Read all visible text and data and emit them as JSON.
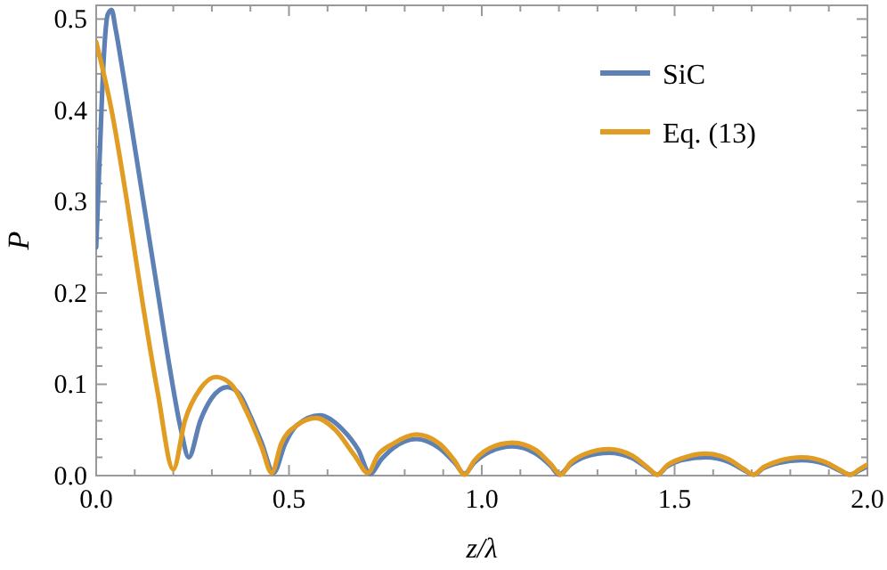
{
  "chart_data": {
    "type": "line",
    "xlabel": "z/λ",
    "ylabel": "P",
    "xlim": [
      0,
      2
    ],
    "ylim": [
      0,
      0.515
    ],
    "xticks": [
      {
        "value": 0,
        "label": "0.0"
      },
      {
        "value": 0.1,
        "label": null
      },
      {
        "value": 0.2,
        "label": null
      },
      {
        "value": 0.3,
        "label": null
      },
      {
        "value": 0.4,
        "label": null
      },
      {
        "value": 0.5,
        "label": "0.5"
      },
      {
        "value": 0.6,
        "label": null
      },
      {
        "value": 0.7,
        "label": null
      },
      {
        "value": 0.8,
        "label": null
      },
      {
        "value": 0.9,
        "label": null
      },
      {
        "value": 1,
        "label": "1.0"
      },
      {
        "value": 1.1,
        "label": null
      },
      {
        "value": 1.2,
        "label": null
      },
      {
        "value": 1.3,
        "label": null
      },
      {
        "value": 1.4,
        "label": null
      },
      {
        "value": 1.5,
        "label": "1.5"
      },
      {
        "value": 1.6,
        "label": null
      },
      {
        "value": 1.7,
        "label": null
      },
      {
        "value": 1.8,
        "label": null
      },
      {
        "value": 1.9,
        "label": null
      },
      {
        "value": 2,
        "label": "2.0"
      }
    ],
    "yticks": [
      {
        "value": 0,
        "label": "0.0"
      },
      {
        "value": 0.02,
        "label": null
      },
      {
        "value": 0.04,
        "label": null
      },
      {
        "value": 0.06,
        "label": null
      },
      {
        "value": 0.08,
        "label": null
      },
      {
        "value": 0.1,
        "label": "0.1"
      },
      {
        "value": 0.12,
        "label": null
      },
      {
        "value": 0.14,
        "label": null
      },
      {
        "value": 0.16,
        "label": null
      },
      {
        "value": 0.18,
        "label": null
      },
      {
        "value": 0.2,
        "label": "0.2"
      },
      {
        "value": 0.22,
        "label": null
      },
      {
        "value": 0.24,
        "label": null
      },
      {
        "value": 0.26,
        "label": null
      },
      {
        "value": 0.28,
        "label": null
      },
      {
        "value": 0.3,
        "label": "0.3"
      },
      {
        "value": 0.32,
        "label": null
      },
      {
        "value": 0.34,
        "label": null
      },
      {
        "value": 0.36,
        "label": null
      },
      {
        "value": 0.38,
        "label": null
      },
      {
        "value": 0.4,
        "label": "0.4"
      },
      {
        "value": 0.42,
        "label": null
      },
      {
        "value": 0.44,
        "label": null
      },
      {
        "value": 0.46,
        "label": null
      },
      {
        "value": 0.48,
        "label": null
      },
      {
        "value": 0.5,
        "label": "0.5"
      }
    ],
    "grid": false,
    "legend": "top right",
    "line_style": "solid",
    "marker": "none",
    "series": [
      {
        "name": "SiC",
        "color": "#5e81b5",
        "x": [
          0,
          0.01,
          0.02,
          0.03,
          0.04,
          0.05,
          0.07,
          0.1,
          0.13,
          0.16,
          0.19,
          0.22,
          0.24,
          0.27,
          0.3,
          0.34,
          0.37,
          0.4,
          0.43,
          0.46,
          0.49,
          0.52,
          0.58,
          0.64,
          0.68,
          0.71,
          0.74,
          0.77,
          0.83,
          0.89,
          0.93,
          0.955,
          0.98,
          1.02,
          1.08,
          1.14,
          1.18,
          1.2,
          1.23,
          1.27,
          1.33,
          1.39,
          1.43,
          1.455,
          1.48,
          1.52,
          1.58,
          1.64,
          1.68,
          1.705,
          1.73,
          1.77,
          1.83,
          1.89,
          1.93,
          1.955,
          1.98,
          2.0
        ],
        "values": [
          0.25,
          0.36,
          0.46,
          0.505,
          0.51,
          0.49,
          0.44,
          0.36,
          0.28,
          0.2,
          0.12,
          0.05,
          0.02,
          0.06,
          0.085,
          0.097,
          0.09,
          0.065,
          0.035,
          0.003,
          0.035,
          0.055,
          0.066,
          0.05,
          0.028,
          0.002,
          0.018,
          0.03,
          0.04,
          0.03,
          0.014,
          0.002,
          0.014,
          0.026,
          0.032,
          0.024,
          0.01,
          0.001,
          0.012,
          0.021,
          0.025,
          0.019,
          0.008,
          0.001,
          0.01,
          0.017,
          0.02,
          0.015,
          0.006,
          0.001,
          0.008,
          0.014,
          0.017,
          0.013,
          0.005,
          0.001,
          0.006,
          0.01
        ]
      },
      {
        "name": "Eq. (13)",
        "color": "#e19c24",
        "x": [
          0,
          0.04,
          0.08,
          0.12,
          0.16,
          0.2,
          0.23,
          0.27,
          0.31,
          0.35,
          0.39,
          0.43,
          0.455,
          0.48,
          0.52,
          0.57,
          0.62,
          0.67,
          0.705,
          0.73,
          0.77,
          0.83,
          0.89,
          0.93,
          0.955,
          0.98,
          1.02,
          1.08,
          1.14,
          1.18,
          1.205,
          1.23,
          1.27,
          1.33,
          1.39,
          1.43,
          1.455,
          1.48,
          1.52,
          1.58,
          1.64,
          1.68,
          1.705,
          1.73,
          1.77,
          1.83,
          1.89,
          1.93,
          1.955,
          1.98,
          2.0
        ],
        "values": [
          0.475,
          0.4,
          0.3,
          0.19,
          0.09,
          0.007,
          0.06,
          0.095,
          0.108,
          0.1,
          0.07,
          0.03,
          0.003,
          0.035,
          0.055,
          0.063,
          0.05,
          0.022,
          0.003,
          0.022,
          0.035,
          0.045,
          0.035,
          0.016,
          0.001,
          0.016,
          0.03,
          0.036,
          0.028,
          0.012,
          0.001,
          0.014,
          0.024,
          0.029,
          0.022,
          0.009,
          0.001,
          0.011,
          0.019,
          0.024,
          0.018,
          0.007,
          0.001,
          0.009,
          0.016,
          0.02,
          0.015,
          0.006,
          0.001,
          0.007,
          0.012
        ]
      }
    ]
  }
}
